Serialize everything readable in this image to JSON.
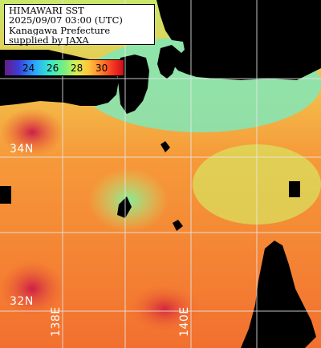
{
  "title_lines": [
    "HIMAWARI SST",
    "2025/09/07 03:00 (UTC)",
    "Kanagawa Prefecture",
    "supplied by JAXA"
  ],
  "color_scale": {
    "ticks": [
      "24",
      "26",
      "28",
      "30"
    ]
  },
  "grid": {
    "latitudes": [
      "34N",
      "32N"
    ],
    "longitudes": [
      "138E",
      "140E"
    ]
  },
  "colors": {
    "grid_line": "#e8e8e8",
    "land": "#000000",
    "cold_water": "#7deca8",
    "warm_water": "#f1753a"
  }
}
